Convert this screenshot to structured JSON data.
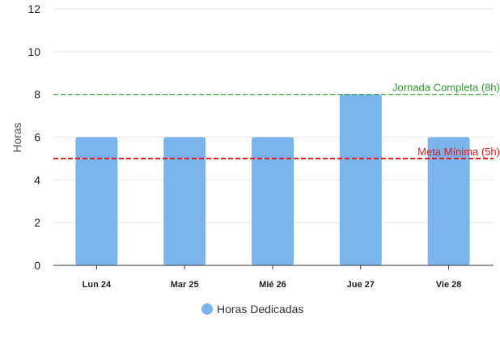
{
  "chart_data": {
    "type": "bar",
    "categories": [
      "Lun 24",
      "Mar 25",
      "Mié 26",
      "Jue 27",
      "Vie 28"
    ],
    "series": [
      {
        "name": "Horas Dedicadas",
        "values": [
          6,
          6,
          6,
          8,
          6
        ],
        "color": "#7bb4ec"
      }
    ],
    "ylabel": "Horas",
    "ylim": [
      0,
      12
    ],
    "yticks": [
      0,
      2,
      4,
      6,
      8,
      10,
      12
    ],
    "grid": true,
    "legend": "bottom",
    "reference_lines": [
      {
        "label": "Jornada Completa (8h)",
        "value": 8,
        "color": "#2e9a2e",
        "style": "dashed"
      },
      {
        "label": "Meta Mínima (5h)",
        "value": 5,
        "color": "#e31919",
        "style": "dashed"
      }
    ]
  }
}
